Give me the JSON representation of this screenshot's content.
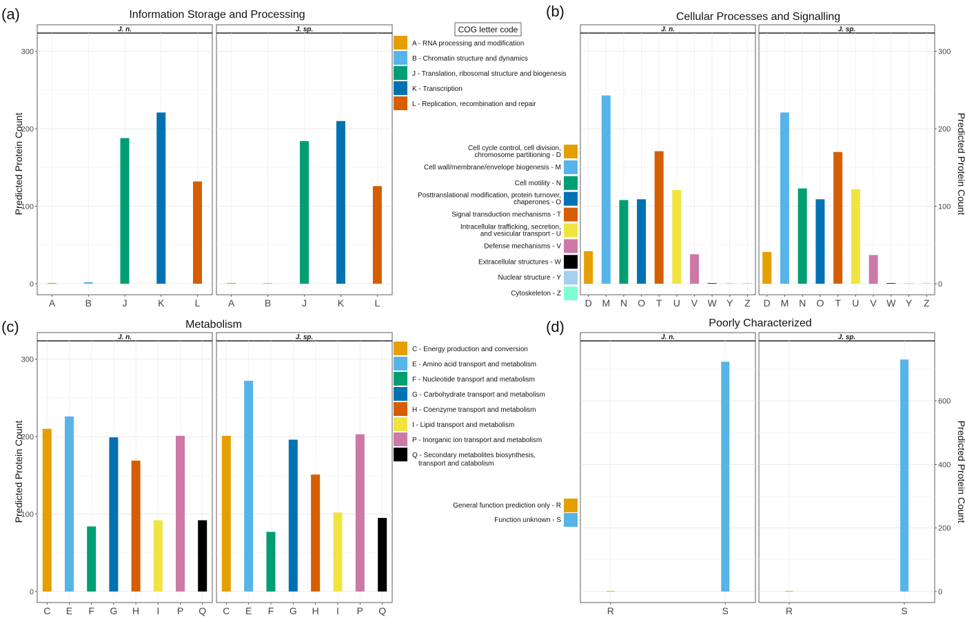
{
  "chart_data": [
    {
      "panel_label": "(a)",
      "type": "bar",
      "title": "Information Storage and Processing",
      "ylabel": "Predicted Protein Count",
      "ylim": [
        0,
        320
      ],
      "yticks": [
        0,
        100,
        200,
        300
      ],
      "y_axis_side": "left",
      "grid": true,
      "facets": [
        "J. n.",
        "J. sp."
      ],
      "categories": [
        "A",
        "B",
        "J",
        "K",
        "L"
      ],
      "colors": [
        "#E69F00",
        "#56B4E9",
        "#009E73",
        "#0072B2",
        "#D55E00"
      ],
      "series": [
        {
          "name": "J. n.",
          "values": [
            1,
            2,
            188,
            221,
            132
          ]
        },
        {
          "name": "J. sp.",
          "values": [
            1,
            0,
            184,
            210,
            126
          ]
        }
      ],
      "legend_title": "COG letter code",
      "legend_position": "right",
      "legend": [
        "A - RNA processing and modification",
        "B - Chromatin structure and dynamics",
        "J - Translation, ribosomal structure and biogenesis",
        "K - Transcription",
        "L - Replication, recombination and repair"
      ]
    },
    {
      "panel_label": "(b)",
      "type": "bar",
      "title": "Cellular Processes and Signalling",
      "ylabel": "Predicted Protein Count",
      "ylim": [
        0,
        320
      ],
      "yticks": [
        0,
        100,
        200,
        300
      ],
      "y_axis_side": "right",
      "grid": true,
      "facets": [
        "J. n.",
        "J. sp."
      ],
      "categories": [
        "D",
        "M",
        "N",
        "O",
        "T",
        "U",
        "V",
        "W",
        "Y",
        "Z"
      ],
      "colors": [
        "#E69F00",
        "#56B4E9",
        "#009E73",
        "#0072B2",
        "#D55E00",
        "#F0E442",
        "#CC79A7",
        "#000000",
        "#A6D1EE",
        "#7FFFD4"
      ],
      "series": [
        {
          "name": "J. n.",
          "values": [
            42,
            243,
            108,
            109,
            171,
            121,
            38,
            0,
            0,
            1
          ]
        },
        {
          "name": "J. sp.",
          "values": [
            41,
            221,
            123,
            109,
            170,
            122,
            37,
            0,
            0,
            1
          ]
        }
      ],
      "legend_position": "left",
      "legend": [
        "Cell cycle control, cell division, chromosome partitioning - D",
        "Cell wall/membrane/envelope biogenesis - M",
        "Cell motility - N",
        "Posttranslational modification, protein turnover, chaperones - O",
        "Signal transduction mechanisms - T",
        "Intracellular trafficking, secretion, and vesicular transport - U",
        "Defense mechanisms - V",
        "Extracellular structures - W",
        "Nuclear structure - Y",
        "Cytoskeleton - Z"
      ]
    },
    {
      "panel_label": "(c)",
      "type": "bar",
      "title": "Metabolism",
      "ylabel": "Predicted Protein Count",
      "ylim": [
        0,
        320
      ],
      "yticks": [
        0,
        100,
        200,
        300
      ],
      "y_axis_side": "left",
      "grid": true,
      "facets": [
        "J. n.",
        "J. sp."
      ],
      "categories": [
        "C",
        "E",
        "F",
        "G",
        "H",
        "I",
        "P",
        "Q"
      ],
      "colors": [
        "#E69F00",
        "#56B4E9",
        "#009E73",
        "#0072B2",
        "#D55E00",
        "#F0E442",
        "#CC79A7",
        "#000000"
      ],
      "series": [
        {
          "name": "J. n.",
          "values": [
            210,
            226,
            84,
            199,
            169,
            92,
            201,
            92
          ]
        },
        {
          "name": "J. sp.",
          "values": [
            201,
            272,
            77,
            196,
            151,
            102,
            203,
            95
          ]
        }
      ],
      "legend_position": "right",
      "legend": [
        "C - Energy production and conversion",
        "E - Amino acid transport and metabolism",
        "F - Nucleotide transport and metabolism",
        "G - Carbohydrate transport and metabolism",
        "H - Coenzyme transport and metabolism",
        "I - Lipid transport and metabolism",
        "P - Inorganic ion transport and metabolism",
        "Q - Secondary metabolites biosynthesis, transport and catabolism"
      ]
    },
    {
      "panel_label": "(d)",
      "type": "bar",
      "title": "Poorly Characterized",
      "ylabel": "Predicted Protein Count",
      "ylim": [
        0,
        780
      ],
      "yticks": [
        0,
        200,
        400,
        600
      ],
      "y_axis_side": "right",
      "grid": true,
      "facets": [
        "J. n.",
        "J. sp."
      ],
      "categories": [
        "R",
        "S"
      ],
      "colors": [
        "#E69F00",
        "#56B4E9"
      ],
      "series": [
        {
          "name": "J. n.",
          "values": [
            0,
            723
          ]
        },
        {
          "name": "J. sp.",
          "values": [
            0,
            730
          ]
        }
      ],
      "legend_position": "left",
      "legend": [
        "General function prediction only - R",
        "Function unknown - S"
      ]
    }
  ]
}
